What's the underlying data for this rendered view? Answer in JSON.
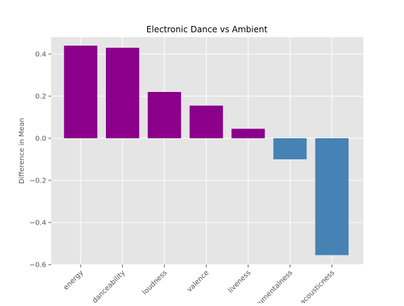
{
  "chart_data": {
    "type": "bar",
    "title": "Electronic Dance vs Ambient",
    "xlabel": "",
    "ylabel": "Difference in Mean",
    "categories": [
      "energy",
      "danceability",
      "loudness",
      "valence",
      "liveness",
      "instrumentalness",
      "acousticness"
    ],
    "values": [
      0.44,
      0.43,
      0.22,
      0.155,
      0.045,
      -0.1,
      -0.555
    ],
    "colors": [
      "#8b008b",
      "#8b008b",
      "#8b008b",
      "#8b008b",
      "#8b008b",
      "#4682b4",
      "#4682b4"
    ],
    "ylim": [
      -0.6,
      0.48
    ],
    "yticks": [
      -0.6,
      -0.4,
      -0.2,
      0.0,
      0.2,
      0.4
    ],
    "ytick_labels": [
      "−0.6",
      "−0.4",
      "−0.2",
      "0.0",
      "0.2",
      "0.4"
    ],
    "grid": true,
    "style": {
      "axes_bg": "#e5e5e5",
      "grid_color": "#ffffff",
      "tick_color": "#555555",
      "title_color": "#000000"
    }
  }
}
